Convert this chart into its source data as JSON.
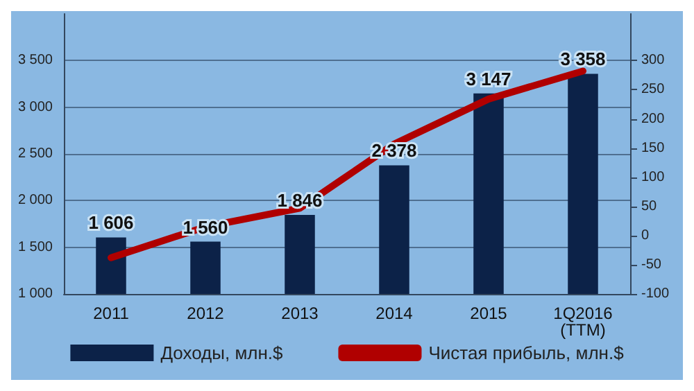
{
  "chart_data": {
    "type": "bar",
    "categories": [
      "2011",
      "2012",
      "2013",
      "2014",
      "2015",
      "1Q2016\n(TTM)"
    ],
    "series": [
      {
        "name": "Доходы, млн.$",
        "color": "#0c2248",
        "values": [
          1606,
          1560,
          1846,
          2378,
          3147,
          3358
        ],
        "value_labels": [
          "1 606",
          "1 560",
          "1 846",
          "2 378",
          "3 147",
          "3 358"
        ]
      },
      {
        "name": "Чистая прибыль, млн.$",
        "type": "line",
        "axis": "y2",
        "color": "#b00000",
        "values": [
          -38,
          15,
          47,
          157,
          234,
          282
        ]
      }
    ],
    "ylim": [
      1000,
      4000
    ],
    "yticks": [
      {
        "value": 1000,
        "label": "1 000"
      },
      {
        "value": 1500,
        "label": "1 500"
      },
      {
        "value": 2000,
        "label": "2 000"
      },
      {
        "value": 2500,
        "label": "2 500"
      },
      {
        "value": 3000,
        "label": "3 000"
      },
      {
        "value": 3500,
        "label": "3 500"
      }
    ],
    "y2lim": [
      -100,
      380
    ],
    "y2ticks": [
      -100,
      -50,
      0,
      50,
      100,
      150,
      200,
      250,
      300
    ],
    "grid": "y",
    "legend": "bottom",
    "marker": "none"
  }
}
